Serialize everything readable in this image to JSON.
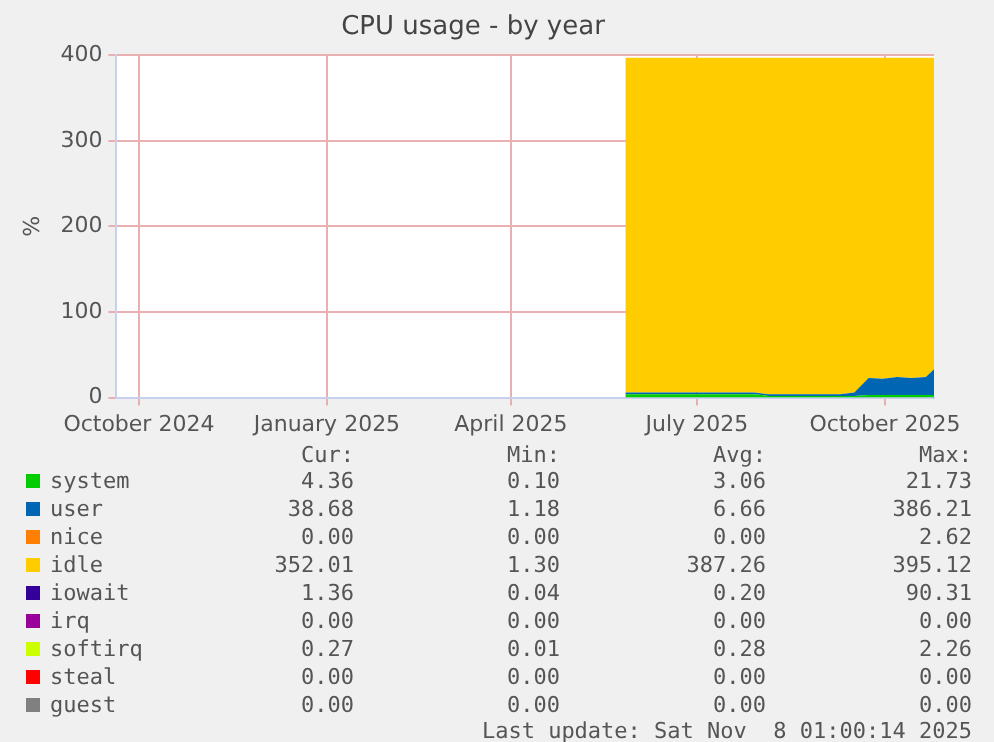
{
  "chart_data": {
    "type": "area",
    "title": "CPU usage - by year",
    "ylabel": "%",
    "stacked": true,
    "legend": "bottom",
    "grid": true,
    "x": [
      "2025-05-27",
      "2025-06-03",
      "2025-06-10",
      "2025-06-17",
      "2025-06-24",
      "2025-07-01",
      "2025-07-08",
      "2025-07-15",
      "2025-07-22",
      "2025-07-29",
      "2025-08-05",
      "2025-08-12",
      "2025-08-19",
      "2025-08-26",
      "2025-09-02",
      "2025-09-09",
      "2025-09-16",
      "2025-09-23",
      "2025-09-30",
      "2025-10-07",
      "2025-10-14",
      "2025-10-21",
      "2025-10-25"
    ],
    "xlim": [
      "2024-09-20",
      "2025-10-25"
    ],
    "xticks": [
      {
        "value": "2024-10-01",
        "label": "October 2024"
      },
      {
        "value": "2025-01-01",
        "label": "January 2025"
      },
      {
        "value": "2025-04-01",
        "label": "April 2025"
      },
      {
        "value": "2025-07-01",
        "label": "July 2025"
      },
      {
        "value": "2025-10-01",
        "label": "October 2025"
      }
    ],
    "ylim": [
      0,
      400
    ],
    "yticks": [
      0,
      100,
      200,
      300,
      400
    ],
    "series": [
      {
        "name": "system",
        "color": "#00cc00",
        "values": [
          4,
          4,
          4,
          4,
          4,
          4,
          4,
          4,
          4,
          4,
          2,
          2,
          2,
          2,
          2,
          2,
          2,
          3,
          3,
          3,
          3,
          3,
          3
        ]
      },
      {
        "name": "user",
        "color": "#0066b3",
        "values": [
          2,
          2,
          2,
          2,
          2,
          2,
          2,
          2,
          2,
          2,
          2,
          2,
          2,
          2,
          2,
          2,
          4,
          20,
          19,
          21,
          20,
          21,
          30
        ]
      },
      {
        "name": "nice",
        "color": "#ff8000",
        "values": [
          null,
          null,
          null,
          null,
          null,
          null,
          null,
          null,
          null,
          null,
          null,
          null,
          null,
          null,
          null,
          null,
          null,
          null,
          null,
          null,
          null,
          null,
          null
        ]
      },
      {
        "name": "idle",
        "color": "#ffcc00",
        "values": [
          391,
          391,
          391,
          391,
          391,
          391,
          391,
          391,
          391,
          391,
          393,
          393,
          393,
          393,
          393,
          393,
          391,
          374,
          375,
          373,
          374,
          373,
          364
        ]
      },
      {
        "name": "iowait",
        "color": "#330099",
        "values": [
          null,
          null,
          null,
          null,
          null,
          null,
          null,
          null,
          null,
          null,
          null,
          null,
          null,
          null,
          null,
          null,
          null,
          null,
          null,
          null,
          null,
          null,
          null
        ]
      },
      {
        "name": "irq",
        "color": "#990099",
        "values": [
          null,
          null,
          null,
          null,
          null,
          null,
          null,
          null,
          null,
          null,
          null,
          null,
          null,
          null,
          null,
          null,
          null,
          null,
          null,
          null,
          null,
          null,
          null
        ]
      },
      {
        "name": "softirq",
        "color": "#ccff00",
        "values": [
          null,
          null,
          null,
          null,
          null,
          null,
          null,
          null,
          null,
          null,
          null,
          null,
          null,
          null,
          null,
          null,
          null,
          null,
          null,
          null,
          null,
          null,
          null
        ]
      },
      {
        "name": "steal",
        "color": "#ff0000",
        "values": [
          null,
          null,
          null,
          null,
          null,
          null,
          null,
          null,
          null,
          null,
          null,
          null,
          null,
          null,
          null,
          null,
          null,
          null,
          null,
          null,
          null,
          null,
          null
        ]
      },
      {
        "name": "guest",
        "color": "#808080",
        "values": [
          null,
          null,
          null,
          null,
          null,
          null,
          null,
          null,
          null,
          null,
          null,
          null,
          null,
          null,
          null,
          null,
          null,
          null,
          null,
          null,
          null,
          null,
          null
        ]
      }
    ],
    "annotations": [
      "Cur:",
      "Min:",
      "Avg:",
      "Max:",
      "4.36",
      "0.10",
      "3.06",
      "21.73",
      "38.68",
      "1.18",
      "6.66",
      "386.21",
      "0.00",
      "0.00",
      "0.00",
      "2.62",
      "352.01",
      "1.30",
      "387.26",
      "395.12",
      "1.36",
      "0.04",
      "0.20",
      "90.31",
      "0.00",
      "0.00",
      "0.00",
      "0.00",
      "0.27",
      "0.01",
      "0.28",
      "2.26",
      "0.00",
      "0.00",
      "0.00",
      "0.00",
      "0.00",
      "0.00",
      "0.00",
      "0.00",
      "Last update: Sat Nov  8 01:00:14 2025"
    ]
  }
}
